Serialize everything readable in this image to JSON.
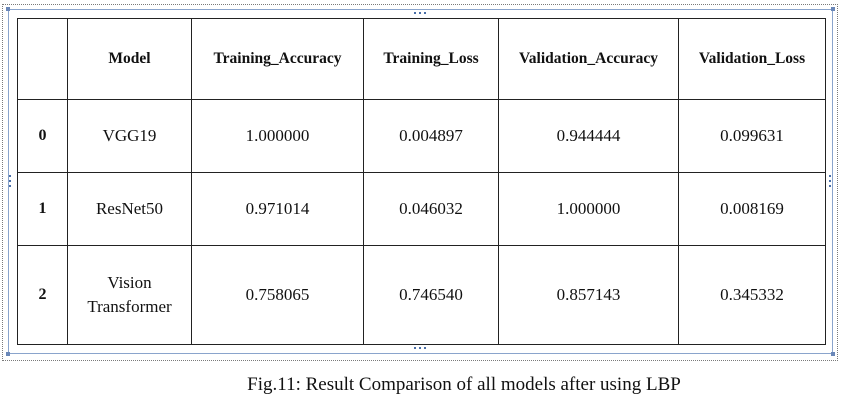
{
  "table": {
    "columns": [
      "",
      "Model",
      "Training_Accuracy",
      "Training_Loss",
      "Validation_Accuracy",
      "Validation_Loss"
    ],
    "rows": [
      {
        "index": "0",
        "model": "VGG19",
        "training_accuracy": "1.000000",
        "training_loss": "0.004897",
        "validation_accuracy": "0.944444",
        "validation_loss": "0.099631"
      },
      {
        "index": "1",
        "model": "ResNet50",
        "training_accuracy": "0.971014",
        "training_loss": "0.046032",
        "validation_accuracy": "1.000000",
        "validation_loss": "0.008169"
      },
      {
        "index": "2",
        "model": "Vision Transformer",
        "training_accuracy": "0.758065",
        "training_loss": "0.746540",
        "validation_accuracy": "0.857143",
        "validation_loss": "0.345332"
      }
    ]
  },
  "caption": "Fig.11: Result Comparison of all models after using LBP"
}
